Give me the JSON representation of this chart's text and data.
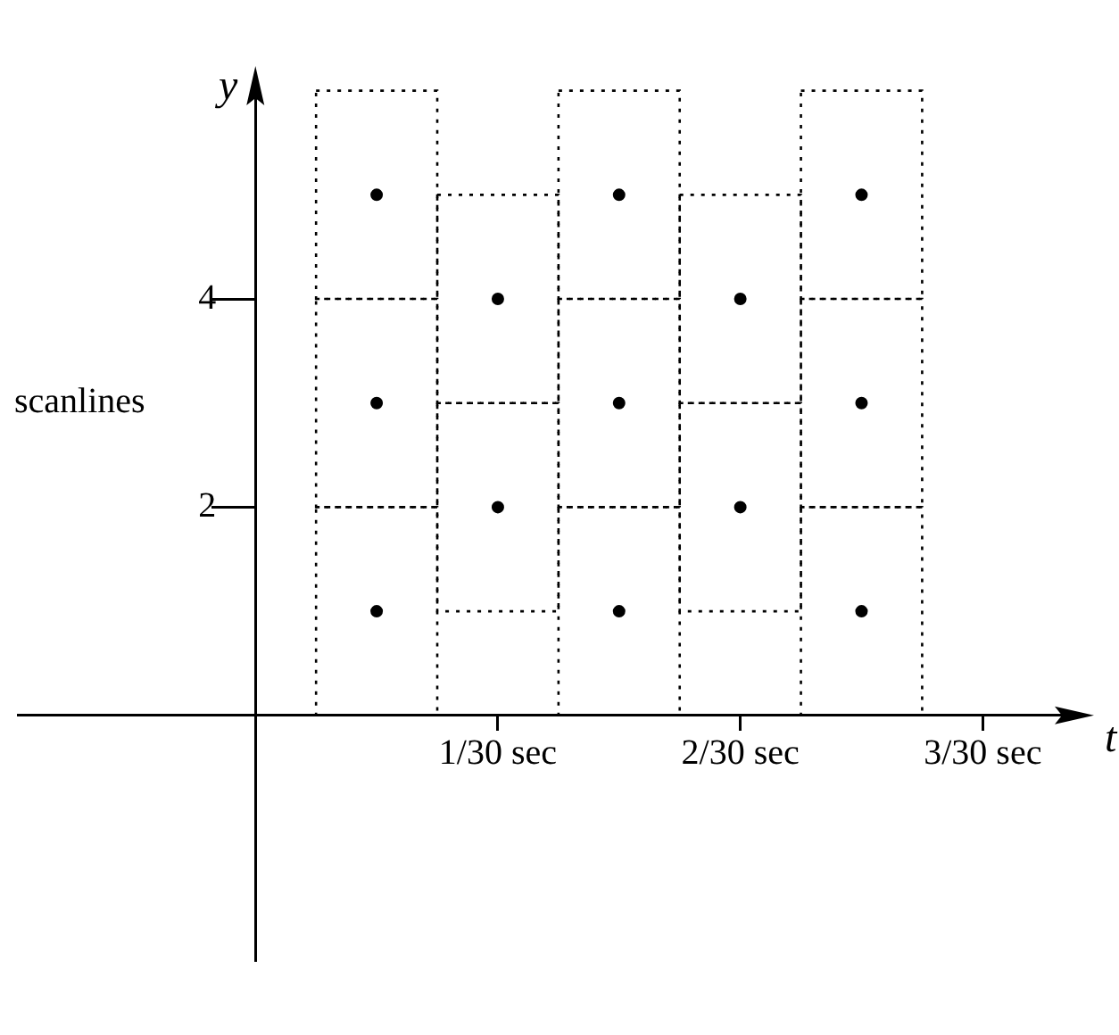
{
  "chart_data": {
    "type": "scatter",
    "xlabel": "t",
    "ylabel": "y",
    "annotations": [
      "scanlines"
    ],
    "categories": [
      null,
      "1/30 sec",
      null,
      "2/30 sec",
      null,
      "3/30 sec"
    ],
    "series": [
      {
        "color": "#000000",
        "values": [
          1,
          null,
          1,
          null,
          1,
          null
        ]
      },
      {
        "color": "#000000",
        "values": [
          null,
          2,
          null,
          2,
          null,
          null
        ]
      },
      {
        "color": "#000000",
        "values": [
          3,
          null,
          3,
          null,
          3,
          null
        ]
      },
      {
        "color": "#000000",
        "values": [
          null,
          4,
          null,
          4,
          null,
          null
        ]
      },
      {
        "color": "#000000",
        "values": [
          5,
          null,
          5,
          null,
          5,
          null
        ]
      }
    ],
    "marker": "circle",
    "ylim": [
      -2.35,
      6.1
    ],
    "yticks": [
      2,
      4
    ],
    "grid": false,
    "legend": false
  }
}
